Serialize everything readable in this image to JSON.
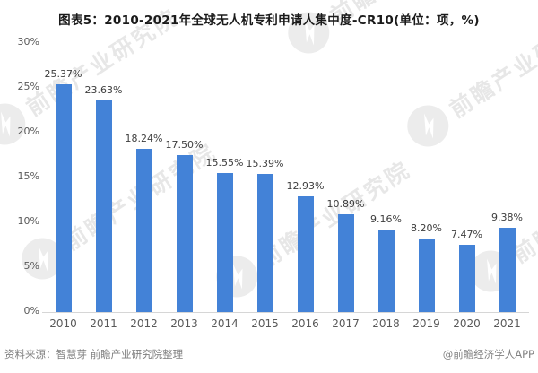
{
  "title": "图表5：2010-2021年全球无人机专利申请人集中度-CR10(单位：项，%)",
  "chart_data": {
    "type": "bar",
    "categories": [
      "2010",
      "2011",
      "2012",
      "2013",
      "2014",
      "2015",
      "2016",
      "2017",
      "2018",
      "2019",
      "2020",
      "2021"
    ],
    "values": [
      25.37,
      23.63,
      18.24,
      17.5,
      15.55,
      15.39,
      12.93,
      10.89,
      9.16,
      8.2,
      7.47,
      9.38
    ],
    "value_labels": [
      "25.37%",
      "23.63%",
      "18.24%",
      "17.50%",
      "15.55%",
      "15.39%",
      "12.93%",
      "10.89%",
      "9.16%",
      "8.20%",
      "7.47%",
      "9.38%"
    ],
    "title": "图表5：2010-2021年全球无人机专利申请人集中度-CR10(单位：项，%)",
    "xlabel": "",
    "ylabel": "",
    "ylim": [
      0,
      30
    ],
    "yticks": [
      "30%",
      "25%",
      "20%",
      "15%",
      "10%",
      "5%",
      "0%"
    ],
    "grid": false,
    "legend_position": "none",
    "bar_color": "#4382d7",
    "axis_line_color": "#d6d6d6"
  },
  "footer": {
    "source": "资料来源：智慧芽 前瞻产业研究院整理",
    "credit": "@前瞻经济学人APP"
  },
  "watermark": {
    "text": "前瞻产业研究院",
    "color": "#e7e7e7"
  }
}
